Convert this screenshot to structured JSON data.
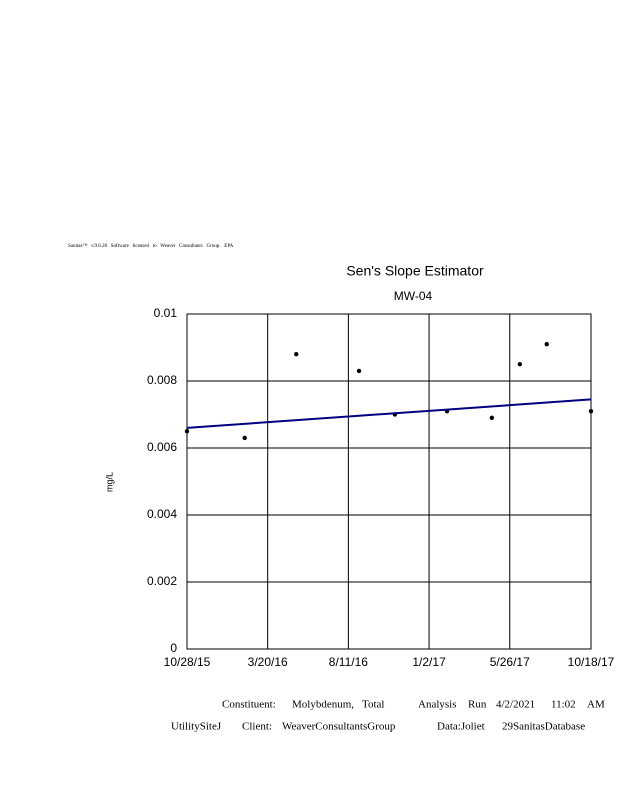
{
  "header": "Sanitas™   v.9.6.28   Software   licensed   to   Weaver   Consultants   Group.   EPA",
  "chart_data": {
    "type": "scatter",
    "title": "Sen's Slope Estimator",
    "subtitle": "MW-04",
    "y_label": "mg/L",
    "xlim": [
      "10/28/15",
      "10/18/17"
    ],
    "xticks": [
      "10/28/15",
      "3/20/16",
      "8/11/16",
      "1/2/17",
      "5/26/17",
      "10/18/17"
    ],
    "ylim": [
      0,
      0.01
    ],
    "yticks": [
      0,
      0.002,
      0.004,
      0.006,
      0.008,
      0.01
    ],
    "grid": true,
    "series": [
      {
        "type": "scatter",
        "color": "#000000",
        "x": [
          "10/28/15",
          "2/8/16",
          "5/10/16",
          "8/30/16",
          "11/2/16",
          "2/3/17",
          "4/24/17",
          "6/13/17",
          "7/31/17",
          "10/18/17"
        ],
        "values": [
          0.0065,
          0.0063,
          0.0088,
          0.0083,
          0.007,
          0.0071,
          0.0069,
          0.0085,
          0.0091,
          0.0071
        ]
      },
      {
        "type": "line",
        "color": "#000080",
        "x": [
          "10/28/15",
          "10/18/17"
        ],
        "values": [
          0.0066,
          0.00745
        ]
      }
    ]
  },
  "footer": {
    "line1": [
      "Constituent:",
      "Molybdenum,",
      "Total",
      "Analysis",
      "Run",
      "4/2/2021",
      "11:02",
      "AM"
    ],
    "line2": [
      "UtilitySiteJ",
      "Client:",
      "WeaverConsultantsGroup",
      "Data:Joliet",
      "29SanitasDatabase"
    ]
  }
}
